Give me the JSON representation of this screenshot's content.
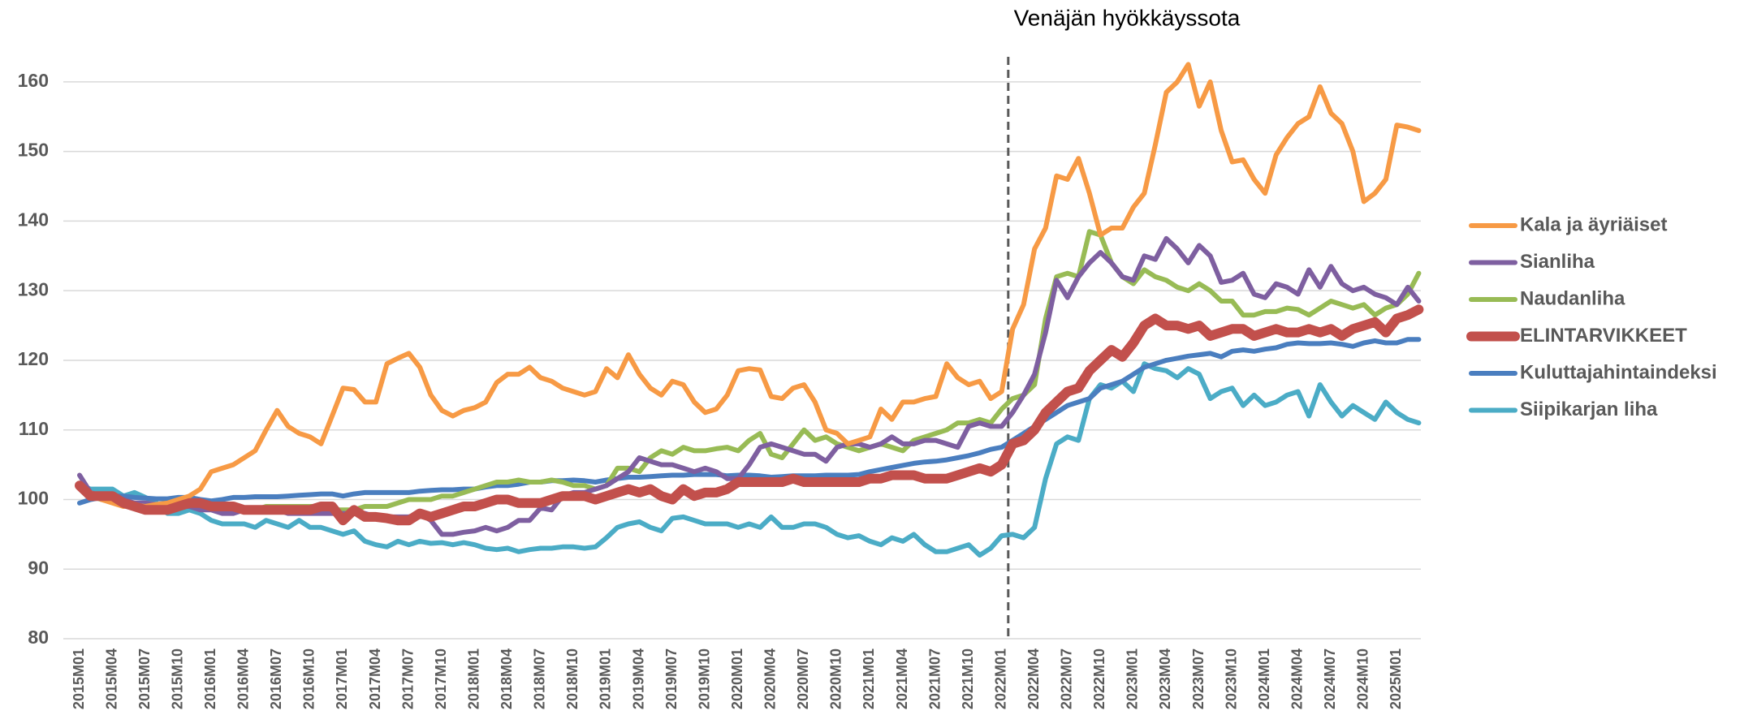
{
  "chart_data": {
    "type": "line",
    "annotation": {
      "text": "Venäjän hyökkäyssota",
      "category": "2022M01"
    },
    "categories": [
      "2015M01",
      null,
      null,
      "2015M04",
      null,
      null,
      "2015M07",
      null,
      null,
      "2015M10",
      null,
      null,
      "2016M01",
      null,
      null,
      "2016M04",
      null,
      null,
      "2016M07",
      null,
      null,
      "2016M10",
      null,
      null,
      "2017M01",
      null,
      null,
      "2017M04",
      null,
      null,
      "2017M07",
      null,
      null,
      "2017M10",
      null,
      null,
      "2018M01",
      null,
      null,
      "2018M04",
      null,
      null,
      "2018M07",
      null,
      null,
      "2018M10",
      null,
      null,
      "2019M01",
      null,
      null,
      "2019M04",
      null,
      null,
      "2019M07",
      null,
      null,
      "2019M10",
      null,
      null,
      "2020M01",
      null,
      null,
      "2020M04",
      null,
      null,
      "2020M07",
      null,
      null,
      "2020M10",
      null,
      null,
      "2021M01",
      null,
      null,
      "2021M04",
      null,
      null,
      "2021M07",
      null,
      null,
      "2021M10",
      null,
      null,
      "2022M01",
      null,
      null,
      "2022M04",
      null,
      null,
      "2022M07",
      null,
      null,
      "2022M10",
      null,
      null,
      "2023M01",
      null,
      null,
      "2023M04",
      null,
      null,
      "2023M07",
      null,
      null,
      "2023M10",
      null,
      null,
      "2024M01",
      null,
      null,
      "2024M04",
      null,
      null,
      "2024M07",
      null,
      null,
      "2024M10",
      null,
      null,
      "2025M01",
      null,
      null
    ],
    "ylim": [
      80,
      165
    ],
    "yticks": [
      80,
      90,
      100,
      110,
      120,
      130,
      140,
      150,
      160
    ],
    "grid": true,
    "legend": "right",
    "series": [
      {
        "name": "Kala ja äyriäiset",
        "color": "#f79a45",
        "linewidth": 6,
        "values": [
          102,
          101,
          100,
          99.5,
          99,
          99.2,
          99,
          99.3,
          99.5,
          100,
          100.5,
          101.5,
          104,
          104.5,
          105,
          106,
          107,
          110,
          112.8,
          110.5,
          109.5,
          109,
          108,
          112,
          116,
          115.8,
          114,
          114,
          119.5,
          120.3,
          121,
          119,
          115,
          112.8,
          112,
          112.8,
          113.2,
          114,
          116.8,
          118,
          118,
          119,
          117.5,
          117,
          116,
          115.5,
          115,
          115.5,
          118.8,
          117.5,
          120.8,
          118,
          116,
          115,
          117,
          116.5,
          114,
          112.5,
          113,
          115,
          118.5,
          118.8,
          118.6,
          114.8,
          114.5,
          116,
          116.5,
          114,
          110,
          109.5,
          108,
          108.5,
          109,
          113,
          111.5,
          114,
          114,
          114.5,
          114.8,
          119.5,
          117.5,
          116.5,
          117,
          114.5,
          115.5,
          124.5,
          128,
          136,
          139,
          146.5,
          146,
          149,
          144,
          138,
          139,
          139,
          142,
          144,
          151,
          158.5,
          160,
          162.5,
          156.5,
          160,
          153,
          148.5,
          148.8,
          146,
          144,
          149.5,
          152,
          154,
          155,
          159.3,
          155.5,
          154,
          150,
          142.8,
          144,
          146,
          153.8,
          153.5,
          153
        ]
      },
      {
        "name": "Sianliha",
        "color": "#7e5fa0",
        "linewidth": 6,
        "values": [
          103.5,
          101,
          100.5,
          100.5,
          100,
          99.5,
          99.5,
          99.3,
          99,
          99,
          99,
          98.5,
          98.5,
          98,
          98,
          98.5,
          98.5,
          98.5,
          98.5,
          98,
          98,
          98,
          98,
          98,
          98,
          98,
          98,
          97.5,
          97.5,
          97.5,
          97.5,
          98,
          97,
          95,
          95,
          95.3,
          95.5,
          96,
          95.5,
          96,
          97,
          97,
          98.8,
          98.5,
          100.5,
          101,
          101,
          101.5,
          102,
          103,
          104,
          106,
          105.5,
          105,
          105,
          104.5,
          104,
          104.5,
          104,
          103,
          103,
          105,
          107.5,
          108,
          107.5,
          107,
          106.5,
          106.5,
          105.5,
          107.5,
          108,
          108,
          107.5,
          108,
          109,
          108,
          108,
          108.5,
          108.5,
          108,
          107.5,
          110.5,
          111,
          110.5,
          110.5,
          112.5,
          115,
          118,
          124,
          131.5,
          129,
          132,
          134,
          135.5,
          134,
          132,
          131.5,
          135,
          134.5,
          137.5,
          136,
          134,
          136.5,
          135,
          131.2,
          131.5,
          132.5,
          129.5,
          129,
          131,
          130.5,
          129.5,
          133,
          130.5,
          133.5,
          131,
          130,
          130.5,
          129.5,
          129,
          128,
          130.5,
          128.5
        ]
      },
      {
        "name": "Naudanliha",
        "color": "#98bb55",
        "linewidth": 6,
        "values": [
          102,
          100.5,
          100,
          100,
          99.5,
          99.5,
          99,
          99,
          99,
          99,
          99,
          99,
          99,
          99,
          99,
          98.5,
          98.5,
          99,
          99,
          99,
          99,
          99,
          99,
          98.5,
          98.5,
          98.5,
          99,
          99,
          99,
          99.5,
          100,
          100,
          100,
          100.5,
          100.5,
          101,
          101.5,
          102,
          102.5,
          102.5,
          102.8,
          102.5,
          102.5,
          102.8,
          102.5,
          102,
          102,
          101.5,
          102,
          104.5,
          104.5,
          104,
          106,
          107,
          106.5,
          107.5,
          107,
          107,
          107.3,
          107.5,
          107,
          108.5,
          109.5,
          106.5,
          106,
          108,
          110,
          108.5,
          109,
          108,
          107.5,
          107,
          107.5,
          108,
          107.5,
          107,
          108.5,
          109,
          109.5,
          110,
          111,
          111,
          111.5,
          111,
          113,
          114.5,
          115,
          116.5,
          126,
          132,
          132.5,
          132,
          138.5,
          138,
          134,
          132,
          131,
          133,
          132,
          131.5,
          130.5,
          130,
          131,
          130,
          128.5,
          128.5,
          126.5,
          126.5,
          127,
          127,
          127.5,
          127.3,
          126.5,
          127.5,
          128.5,
          128,
          127.5,
          128,
          126.5,
          127.5,
          128,
          129.5,
          132.5
        ]
      },
      {
        "name": "ELINTARVIKKEET",
        "color": "#c2504c",
        "linewidth": 12,
        "values": [
          102,
          100.5,
          100.5,
          100.5,
          99.5,
          99,
          98.5,
          98.5,
          98.5,
          99,
          99.5,
          99.5,
          99,
          99,
          99,
          98.5,
          98.5,
          98.5,
          98.5,
          98.5,
          98.5,
          98.5,
          99,
          99,
          97,
          98.5,
          97.5,
          97.5,
          97.3,
          97,
          97,
          98,
          97.5,
          98,
          98.5,
          99,
          99,
          99.5,
          100,
          100,
          99.5,
          99.5,
          99.5,
          100,
          100.5,
          100.5,
          100.5,
          100,
          100.5,
          101,
          101.5,
          101,
          101.5,
          100.5,
          100,
          101.5,
          100.5,
          101,
          101,
          101.5,
          102.5,
          102.5,
          102.5,
          102.5,
          102.5,
          103,
          102.5,
          102.5,
          102.5,
          102.5,
          102.5,
          102.5,
          103,
          103,
          103.5,
          103.5,
          103.5,
          103,
          103,
          103,
          103.5,
          104,
          104.5,
          104,
          105,
          108,
          108.5,
          110,
          112.5,
          114,
          115.5,
          116,
          118.5,
          120,
          121.5,
          120.5,
          122.5,
          125,
          126,
          125,
          125,
          124.5,
          125,
          123.5,
          124,
          124.5,
          124.5,
          123.5,
          124,
          124.5,
          124,
          124,
          124.5,
          124,
          124.5,
          123.5,
          124.5,
          125,
          125.5,
          124,
          126,
          126.5,
          127.3
        ]
      },
      {
        "name": "Kuluttajahintaindeksi",
        "color": "#4a7ebf",
        "linewidth": 6,
        "values": [
          99.5,
          100,
          100.3,
          100.5,
          100.5,
          100.3,
          100.2,
          100.1,
          100.1,
          100.3,
          100.3,
          100,
          99.8,
          100,
          100.3,
          100.3,
          100.4,
          100.4,
          100.4,
          100.5,
          100.6,
          100.7,
          100.8,
          100.8,
          100.5,
          100.8,
          101,
          101,
          101,
          101,
          101,
          101.2,
          101.3,
          101.4,
          101.4,
          101.5,
          101.5,
          101.8,
          102,
          102,
          102.2,
          102.5,
          102.5,
          102.7,
          102.7,
          102.8,
          102.7,
          102.5,
          102.8,
          103,
          103.2,
          103.2,
          103.3,
          103.4,
          103.5,
          103.5,
          103.6,
          103.6,
          103.6,
          103.4,
          103.5,
          103.5,
          103.4,
          103.2,
          103.3,
          103.4,
          103.4,
          103.4,
          103.5,
          103.5,
          103.5,
          103.6,
          104,
          104.3,
          104.6,
          104.9,
          105.2,
          105.4,
          105.5,
          105.7,
          106,
          106.3,
          106.7,
          107.2,
          107.5,
          108.5,
          109.5,
          110.5,
          111.5,
          112.5,
          113.5,
          114,
          114.5,
          116,
          116.5,
          117,
          118,
          119,
          119.5,
          120,
          120.3,
          120.6,
          120.8,
          121,
          120.5,
          121.3,
          121.5,
          121.3,
          121.6,
          121.8,
          122.3,
          122.5,
          122.4,
          122.4,
          122.5,
          122.3,
          122,
          122.5,
          122.8,
          122.5,
          122.5,
          123,
          123
        ]
      },
      {
        "name": "Siipikarjan liha",
        "color": "#4bacc6",
        "linewidth": 6,
        "values": [
          102,
          101.5,
          101.5,
          101.5,
          100.5,
          101,
          100.3,
          99.5,
          98,
          98,
          98.5,
          98,
          97,
          96.5,
          96.5,
          96.5,
          96,
          97,
          96.5,
          96,
          97,
          96,
          96,
          95.5,
          95,
          95.5,
          94,
          93.5,
          93.2,
          94,
          93.5,
          94,
          93.7,
          93.8,
          93.5,
          93.8,
          93.5,
          93,
          92.8,
          93,
          92.5,
          92.8,
          93,
          93,
          93.2,
          93.2,
          93,
          93.2,
          94.5,
          96,
          96.5,
          96.8,
          96,
          95.5,
          97.3,
          97.5,
          97,
          96.5,
          96.5,
          96.5,
          96,
          96.5,
          96,
          97.5,
          96,
          96,
          96.5,
          96.5,
          96,
          95,
          94.5,
          94.8,
          94,
          93.5,
          94.5,
          94,
          95,
          93.5,
          92.5,
          92.5,
          93,
          93.5,
          92,
          93,
          94.8,
          95,
          94.5,
          96,
          103,
          108,
          109,
          108.5,
          114.5,
          116.5,
          116,
          117,
          115.5,
          119.5,
          118.8,
          118.5,
          117.5,
          118.8,
          118,
          114.5,
          115.5,
          116,
          113.5,
          115,
          113.5,
          114,
          115,
          115.5,
          112,
          116.5,
          114,
          112,
          113.5,
          112.5,
          111.5,
          114,
          112.5,
          111.5,
          111
        ]
      }
    ]
  }
}
